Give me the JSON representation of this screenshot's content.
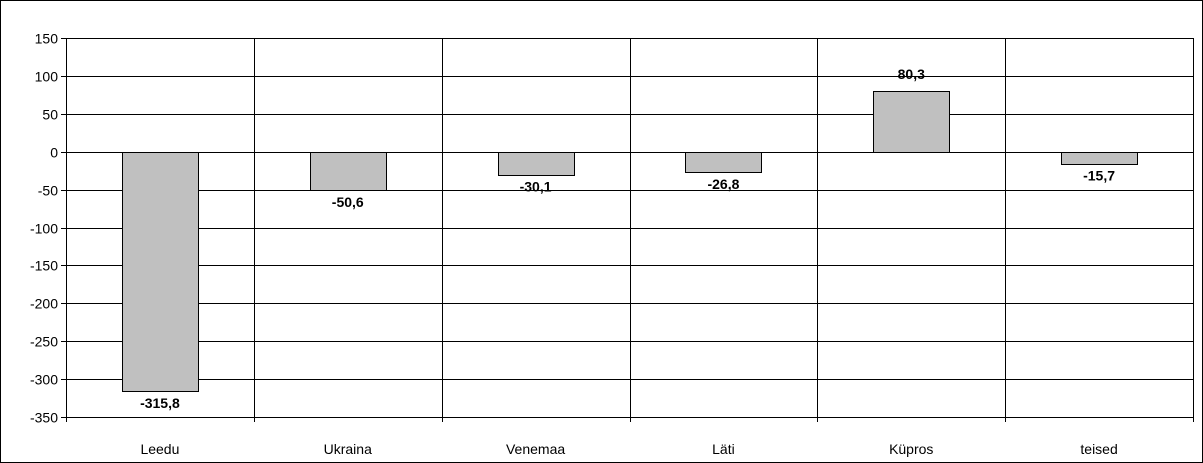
{
  "chart_data": {
    "type": "bar",
    "categories": [
      "Leedu",
      "Ukraina",
      "Venemaa",
      "Läti",
      "Küpros",
      "teised"
    ],
    "values": [
      -315.8,
      -50.6,
      -30.1,
      -26.8,
      80.3,
      -15.7
    ],
    "data_labels": [
      "-315,8",
      "-50,6",
      "-30,1",
      "-26,8",
      "80,3",
      "-15,7"
    ],
    "ylim": [
      -350,
      150
    ],
    "yticks": [
      150,
      100,
      50,
      0,
      -50,
      -100,
      -150,
      -200,
      -250,
      -300,
      -350
    ],
    "grid": true,
    "legend": "none",
    "colors": {
      "bar_fill": "#c0c0c0",
      "bar_stroke": "#000000",
      "grid": "#000000"
    }
  }
}
